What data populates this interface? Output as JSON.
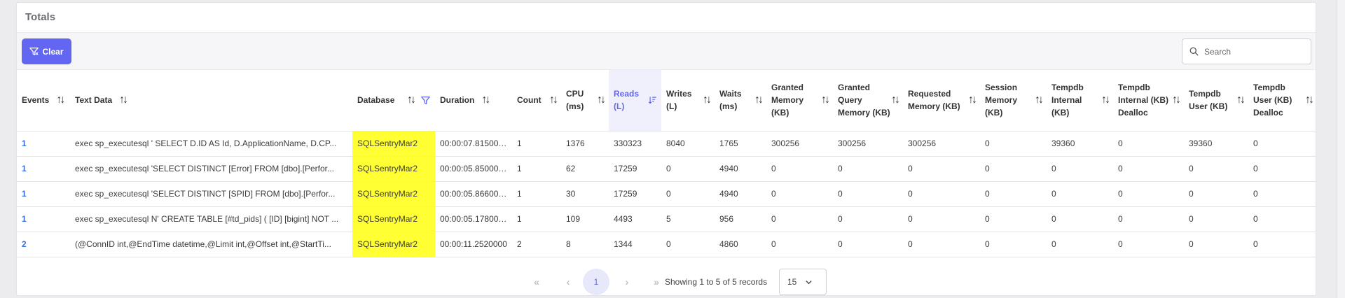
{
  "panel": {
    "title": "Totals"
  },
  "toolbar": {
    "clear_label": "Clear",
    "search_placeholder": "Search"
  },
  "columns": [
    {
      "label": "Events"
    },
    {
      "label": "Text Data"
    },
    {
      "label": "Database"
    },
    {
      "label": "Duration"
    },
    {
      "label": "Count"
    },
    {
      "label": "CPU (ms)"
    },
    {
      "label": "Reads (L)"
    },
    {
      "label": "Writes (L)"
    },
    {
      "label": "Waits (ms)"
    },
    {
      "label": "Granted Memory (KB)"
    },
    {
      "label": "Granted Query Memory (KB)"
    },
    {
      "label": "Requested Memory (KB)"
    },
    {
      "label": "Session Memory (KB)"
    },
    {
      "label": "Tempdb Internal (KB)"
    },
    {
      "label": "Tempdb Internal (KB) Dealloc"
    },
    {
      "label": "Tempdb User (KB)"
    },
    {
      "label": "Tempdb User (KB) Dealloc"
    }
  ],
  "rows": [
    {
      "events": "1",
      "text": "exec sp_executesql ' SELECT D.ID AS Id, D.ApplicationName, D.CP...",
      "database": "SQLSentryMar2",
      "duration": "00:00:07.8150000",
      "count": "1",
      "cpu": "1376",
      "reads": "330323",
      "writes": "8040",
      "waits": "1765",
      "granted": "300256",
      "granted_query": "300256",
      "requested": "300256",
      "session": "0",
      "tempdb_internal": "39360",
      "tempdb_internal_dealloc": "0",
      "tempdb_user": "39360",
      "tempdb_user_dealloc": "0"
    },
    {
      "events": "1",
      "text": "exec sp_executesql 'SELECT DISTINCT [Error] FROM [dbo].[Perfor...",
      "database": "SQLSentryMar2",
      "duration": "00:00:05.8500000",
      "count": "1",
      "cpu": "62",
      "reads": "17259",
      "writes": "0",
      "waits": "4940",
      "granted": "0",
      "granted_query": "0",
      "requested": "0",
      "session": "0",
      "tempdb_internal": "0",
      "tempdb_internal_dealloc": "0",
      "tempdb_user": "0",
      "tempdb_user_dealloc": "0"
    },
    {
      "events": "1",
      "text": "exec sp_executesql 'SELECT DISTINCT [SPID] FROM [dbo].[Perfor...",
      "database": "SQLSentryMar2",
      "duration": "00:00:05.8660000",
      "count": "1",
      "cpu": "30",
      "reads": "17259",
      "writes": "0",
      "waits": "4940",
      "granted": "0",
      "granted_query": "0",
      "requested": "0",
      "session": "0",
      "tempdb_internal": "0",
      "tempdb_internal_dealloc": "0",
      "tempdb_user": "0",
      "tempdb_user_dealloc": "0"
    },
    {
      "events": "1",
      "text": "exec sp_executesql N' CREATE TABLE [#td_pids] ( [ID] [bigint] NOT ...",
      "database": "SQLSentryMar2",
      "duration": "00:00:05.1780000",
      "count": "1",
      "cpu": "109",
      "reads": "4493",
      "writes": "5",
      "waits": "956",
      "granted": "0",
      "granted_query": "0",
      "requested": "0",
      "session": "0",
      "tempdb_internal": "0",
      "tempdb_internal_dealloc": "0",
      "tempdb_user": "0",
      "tempdb_user_dealloc": "0"
    },
    {
      "events": "2",
      "text": "(@ConnID int,@EndTime datetime,@Limit int,@Offset int,@StartTi...",
      "database": "SQLSentryMar2",
      "duration": "00:00:11.2520000",
      "count": "2",
      "cpu": "8",
      "reads": "1344",
      "writes": "0",
      "waits": "4860",
      "granted": "0",
      "granted_query": "0",
      "requested": "0",
      "session": "0",
      "tempdb_internal": "0",
      "tempdb_internal_dealloc": "0",
      "tempdb_user": "0",
      "tempdb_user_dealloc": "0"
    }
  ],
  "pagination": {
    "first": "«",
    "prev": "‹",
    "current_page": "1",
    "next": "›",
    "last": "»",
    "summary": "Showing 1 to 5 of 5 records",
    "page_size": "15"
  },
  "colors": {
    "accent": "#6366f1",
    "db_highlight": "#ffff33",
    "link": "#3b6fd8"
  }
}
